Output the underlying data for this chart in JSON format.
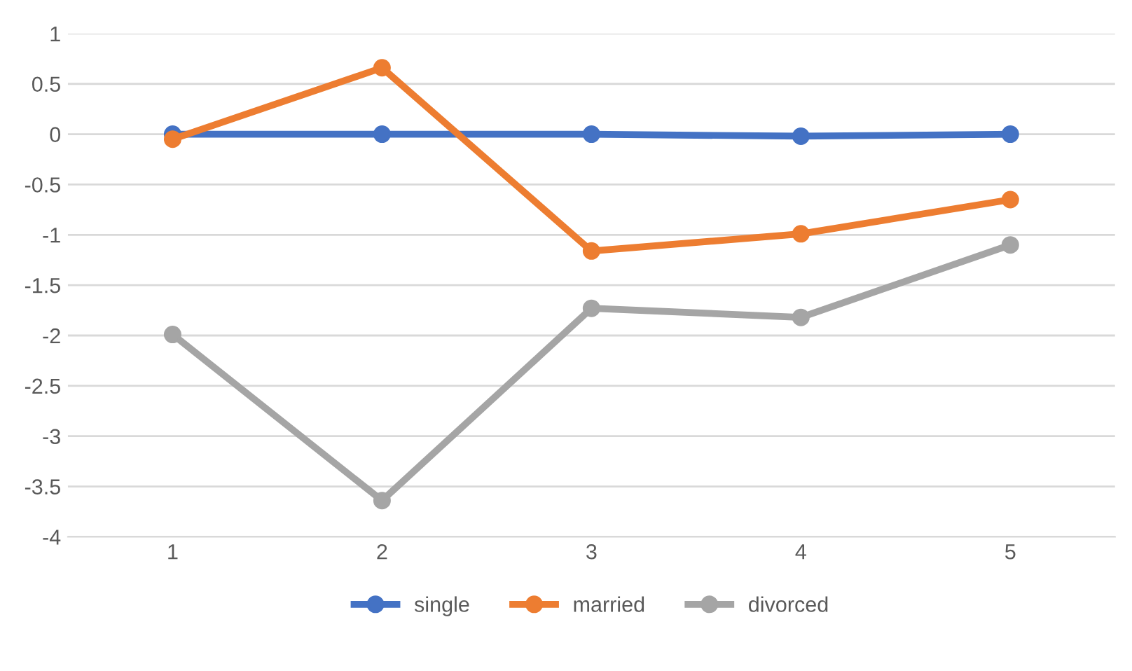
{
  "chart_data": {
    "type": "line",
    "categories": [
      "1",
      "2",
      "3",
      "4",
      "5"
    ],
    "series": [
      {
        "name": "single",
        "color": "#4472c4",
        "values": [
          0,
          0,
          0,
          -0.02,
          0
        ]
      },
      {
        "name": "married",
        "color": "#ed7d31",
        "values": [
          -0.05,
          0.66,
          -1.16,
          -0.99,
          -0.65
        ]
      },
      {
        "name": "divorced",
        "color": "#a5a5a5",
        "values": [
          -1.99,
          -3.64,
          -1.73,
          -1.82,
          -1.1
        ]
      }
    ],
    "ylim": [
      -4,
      1
    ],
    "yticks": [
      -4,
      -3.5,
      -3,
      -2.5,
      -2,
      -1.5,
      -1,
      -0.5,
      0,
      0.5,
      1
    ],
    "grid": "y",
    "legend": "bottom",
    "marker": "circle",
    "line_style": "solid"
  }
}
